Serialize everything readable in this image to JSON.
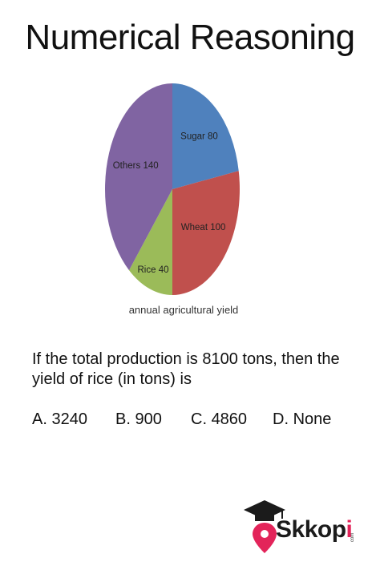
{
  "title": "Numerical Reasoning",
  "chart_data": {
    "type": "pie",
    "caption": "annual agricultural yield",
    "slices": [
      {
        "label": "Sugar",
        "value": 80,
        "color": "#4f81bd"
      },
      {
        "label": "Wheat",
        "value": 100,
        "color": "#c0504d"
      },
      {
        "label": "Rice",
        "value": 40,
        "color": "#9bbb59"
      },
      {
        "label": "Others",
        "value": 140,
        "color": "#8064a2"
      }
    ]
  },
  "question": "If the total production is 8100 tons, then the yield of rice (in tons) is",
  "options": [
    {
      "letter": "A.",
      "text": "3240"
    },
    {
      "letter": "B.",
      "text": "900"
    },
    {
      "letter": "C.",
      "text": "4860"
    },
    {
      "letter": "D.",
      "text": "None"
    }
  ],
  "logo": {
    "text_main": "Skkop",
    "text_accent": "i",
    "text_small": "com"
  }
}
